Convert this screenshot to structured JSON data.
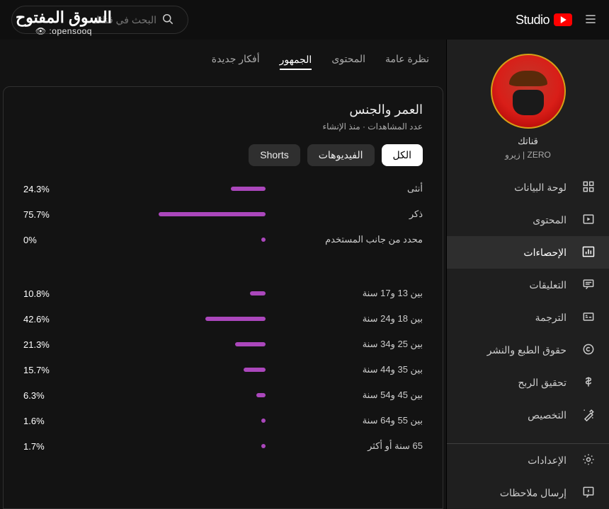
{
  "watermark": {
    "line1": "السوق المفتوح",
    "line2": "opensooq: 👁"
  },
  "header": {
    "studio_label": "Studio",
    "search_placeholder": "البحث في قناتك"
  },
  "channel": {
    "label": "قناتك",
    "name": "ZERO | زيرو"
  },
  "sidebar": {
    "items": [
      {
        "label": "لوحة البيانات",
        "icon": "dashboard"
      },
      {
        "label": "المحتوى",
        "icon": "content"
      },
      {
        "label": "الإحصاءات",
        "icon": "analytics",
        "active": true
      },
      {
        "label": "التعليقات",
        "icon": "comments"
      },
      {
        "label": "الترجمة",
        "icon": "subtitles"
      },
      {
        "label": "حقوق الطبع والنشر",
        "icon": "copyright"
      },
      {
        "label": "تحقيق الربح",
        "icon": "monetize"
      },
      {
        "label": "التخصيص",
        "icon": "customize"
      }
    ],
    "bottom": [
      {
        "label": "الإعدادات",
        "icon": "settings"
      },
      {
        "label": "إرسال ملاحظات",
        "icon": "feedback"
      }
    ]
  },
  "tabs": [
    {
      "label": "نظرة عامة"
    },
    {
      "label": "المحتوى"
    },
    {
      "label": "الجمهور",
      "active": true
    },
    {
      "label": "أفكار جديدة"
    }
  ],
  "metric": {
    "title": "العمر والجنس",
    "subtitle": "عدد المشاهدات · منذ الإنشاء",
    "filters": [
      {
        "label": "الكل",
        "active": true
      },
      {
        "label": "الفيديوهات"
      },
      {
        "label": "Shorts"
      }
    ],
    "bar_color": "#ab47bc",
    "max_pct": 100,
    "gender": [
      {
        "label": "أنثى",
        "pct": 24.3
      },
      {
        "label": "ذكر",
        "pct": 75.7
      },
      {
        "label": "محدد من جانب المستخدم",
        "pct": 0
      }
    ],
    "age": [
      {
        "label": "بين 13 و17 سنة",
        "pct": 10.8
      },
      {
        "label": "بين 18 و24 سنة",
        "pct": 42.6
      },
      {
        "label": "بين 25 و34 سنة",
        "pct": 21.3
      },
      {
        "label": "بين 35 و44 سنة",
        "pct": 15.7
      },
      {
        "label": "بين 45 و54 سنة",
        "pct": 6.3
      },
      {
        "label": "بين 55 و64 سنة",
        "pct": 1.6
      },
      {
        "label": "65 سنة أو أكثر",
        "pct": 1.7
      }
    ]
  }
}
